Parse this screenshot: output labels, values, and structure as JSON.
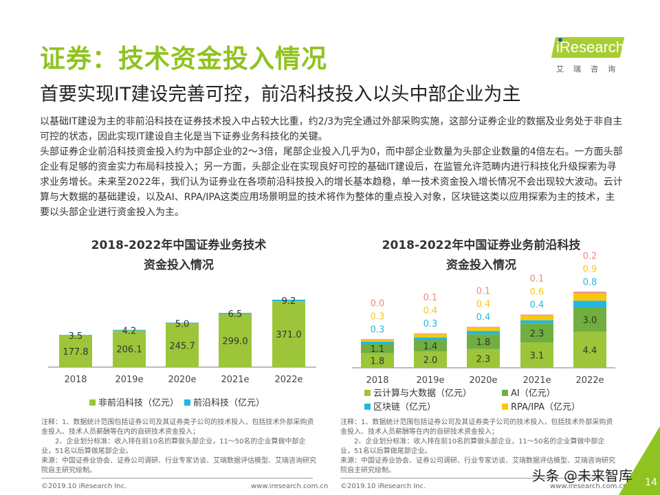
{
  "header": {
    "title": "证券：技术资金投入情况",
    "subtitle": "首要实现IT建设完善可控，前沿科技投入以头中部企业为主"
  },
  "logo": {
    "brand": "iResearch",
    "cn": "艾瑞咨询"
  },
  "body": {
    "paragraphs": [
      "以基础IT建设为主的非前沿科技在证券技术投入中占较大比重，约2/3为完全通过外部采购实施，这部分证券企业的数据及业务处于非自主可控的状态，因此实现IT建设自主化是当下证券业务科技化的关键。",
      "头部证券企业前沿科技资金投入约为中部企业的2～3倍，尾部企业投入几乎为0，而中部企业数量为头部企业数量的4倍左右。一方面头部企业有足够的资金实力布局科技投入；另一方面，头部企业在实现良好可控的基础IT建设后，在监管允许范畴内进行科技化升级探索为寻求业务增长。未来至2022年，我们认为证券业在各项前沿科技投入的增长基本趋稳，单一技术资金投入增长情况不会出现较大波动。云计算与大数据的基础建设，以及AI、RPA/IPA这类应用场景明显的技术将作为整体的重点投入对象，区块链这类以应用探索为主的技术，主要以头部企业进行资金投入为主。"
    ]
  },
  "chart_data": [
    {
      "type": "bar",
      "stacked": true,
      "title": "2018-2022年中国证券业务技术资金投入情况",
      "title_lines": [
        "2018-2022年中国证券业务技术",
        "资金投入情况"
      ],
      "categories": [
        "2018",
        "2019e",
        "2020e",
        "2021e",
        "2022e"
      ],
      "series": [
        {
          "name": "非前沿科技（亿元）",
          "values": [
            177.8,
            206.1,
            245.7,
            299.0,
            371.0
          ],
          "color": "#9dc53a",
          "labels": [
            "177.8",
            "206.1",
            "245.7",
            "299.0",
            "371.0"
          ]
        },
        {
          "name": "前沿科技（亿元）",
          "values": [
            3.5,
            4.2,
            5.0,
            6.5,
            9.2
          ],
          "color": "#22b8e0",
          "labels": [
            "3.5",
            "4.2",
            "5.0",
            "6.5",
            "9.2"
          ]
        }
      ],
      "legend": "bottom",
      "grid": false
    },
    {
      "type": "bar",
      "stacked": true,
      "title": "2018-2022年中国证券业务前沿科技资金投入情况",
      "title_lines": [
        "2018-2022年中国证券业务前沿科技",
        "资金投入情况"
      ],
      "categories": [
        "2018",
        "2019e",
        "2020e",
        "2021e",
        "2022e"
      ],
      "series": [
        {
          "name": "云计算与大数据（亿元）",
          "values": [
            1.8,
            2.0,
            2.3,
            3.1,
            4.4
          ],
          "color": "#9dc53a",
          "labels": [
            "1.8",
            "2.0",
            "2.3",
            "3.1",
            "4.4"
          ]
        },
        {
          "name": "AI（亿元）",
          "values": [
            1.1,
            1.4,
            1.8,
            2.3,
            3.0
          ],
          "color": "#6fae3f",
          "labels": [
            "1.1",
            "1.4",
            "1.8",
            "2.3",
            "3.0"
          ]
        },
        {
          "name": "区块链（亿元）",
          "values": [
            0.3,
            0.3,
            0.4,
            0.4,
            0.8
          ],
          "color": "#22b8e0",
          "labels": [
            "0.3",
            "0.3",
            "0.4",
            "0.4",
            "0.8"
          ]
        },
        {
          "name": "RPA/IPA（亿元）",
          "values": [
            0.3,
            0.4,
            0.4,
            0.6,
            0.9
          ],
          "color": "#f9c80e",
          "labels": [
            "0.3",
            "0.4",
            "0.4",
            "0.6",
            "0.9"
          ]
        },
        {
          "values": [
            0.0,
            0.1,
            0.1,
            0.1,
            0.2
          ],
          "color": "#ef8a80",
          "labels": [
            "0.0",
            "0.1",
            "0.1",
            "0.1",
            "0.2"
          ]
        }
      ],
      "legend": "bottom",
      "grid": false
    }
  ],
  "notes": {
    "left": [
      "注释：1、数据统计范围包括证券公司及其证券类子公司的技术投入，包括技术外部采购资金投入、技术人员薪酬等在内的自研技术资金投入；",
      "　　2、企业划分标准：收入排在前10名的算做头部企业，11～50名的企业算做中部企业，51名以后算做尾部企业。",
      "来源：中国证券业协会、证券公司调研、行业专家访谈、艾瑞数据评估模型、艾瑞咨询研究院自主研究绘制。"
    ],
    "right": [
      "注释：1、数据统计范围包括证券公司及其证券类子公司的技术投入，包括技术外部采购资金投入、技术人员薪酬等在内的自研技术资金投入；",
      "　　2、企业划分标准：收入排在前10名的算做头部企业，11～50名的企业算做中部企业，51名以后算做尾部企业。",
      "来源：中国证券业协会、证券公司调研、行业专家访谈、艾瑞数据评估模型、艾瑞咨询研究院自主研究绘制。"
    ]
  },
  "footer": {
    "copyright": "©2019.10 iResearch Inc.",
    "url": "www.iresearch.com.cn",
    "watermark": "头条 @未来智库",
    "page": "14"
  },
  "colors": {
    "accent": "#8fc31f"
  }
}
